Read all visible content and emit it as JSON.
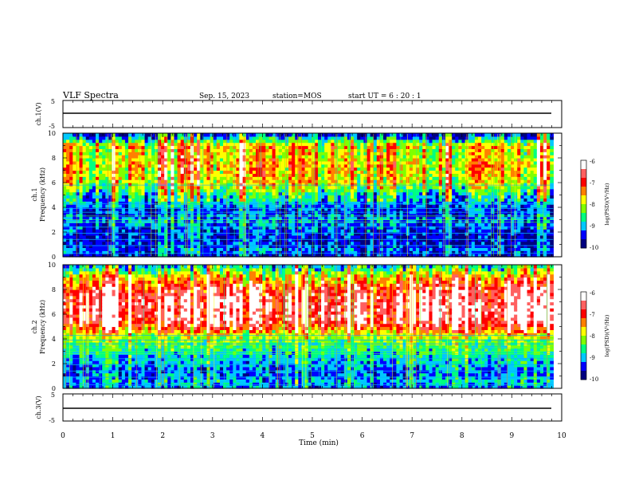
{
  "header": {
    "title": "VLF Spectra",
    "date": "Sep. 15, 2023",
    "station": "station=MOS",
    "start": "start UT = 6 : 20 : 1"
  },
  "panels": {
    "top_trace": {
      "ylabel": "ch.1(V)",
      "y_ticks": [
        "5",
        "-5"
      ]
    },
    "spec1": {
      "ylabel_line1": "ch.1",
      "ylabel_line2": "Frequency (kHz)",
      "y_ticks": [
        "0",
        "2",
        "4",
        "6",
        "8",
        "10"
      ]
    },
    "spec2": {
      "ylabel_line1": "ch.2",
      "ylabel_line2": "Frequency (kHz)",
      "y_ticks": [
        "0",
        "2",
        "4",
        "6",
        "8",
        "10"
      ]
    },
    "bottom_trace": {
      "ylabel": "ch.3(V)",
      "y_ticks": [
        "5",
        "-5"
      ]
    }
  },
  "colorbar": {
    "label": "log(PSD)(V²/Hz)",
    "ticks": [
      "-6",
      "-7",
      "-8",
      "-9",
      "-10"
    ],
    "colors": [
      "#000080",
      "#0000ff",
      "#00c8ff",
      "#00ff80",
      "#80ff00",
      "#ffff00",
      "#ff8000",
      "#ff0000",
      "#ff6060",
      "#ffffff"
    ]
  },
  "x_axis": {
    "label": "Time (min)",
    "ticks": [
      "0",
      "1",
      "2",
      "3",
      "4",
      "5",
      "6",
      "7",
      "8",
      "9",
      "10"
    ]
  },
  "chart_data": {
    "type": "heatmap",
    "title": "VLF Spectra",
    "xlabel": "Time (min)",
    "ylabel": "Frequency (kHz)",
    "xlim": [
      0,
      10
    ],
    "data_end_min": 9.83,
    "ylim": [
      0,
      10
    ],
    "clim": [
      -10,
      -6
    ],
    "colorbar_label": "log(PSD)(V²/Hz)",
    "traces": [
      {
        "name": "ch.1(V)",
        "ylim": [
          -5,
          5
        ],
        "level": 0
      },
      {
        "name": "ch.3(V)",
        "ylim": [
          -5,
          5
        ],
        "level": 0
      }
    ],
    "spectrograms": [
      {
        "name": "ch.1",
        "profile": [
          [
            0,
            -9.6
          ],
          [
            0.5,
            -9.2
          ],
          [
            1.0,
            -9.5
          ],
          [
            1.5,
            -9.6
          ],
          [
            2.0,
            -9.4
          ],
          [
            2.5,
            -9.3
          ],
          [
            3.0,
            -9.1
          ],
          [
            3.5,
            -9.4
          ],
          [
            4.0,
            -9.3
          ],
          [
            4.5,
            -8.9
          ],
          [
            5.0,
            -8.8
          ],
          [
            5.5,
            -8.3
          ],
          [
            6.0,
            -7.9
          ],
          [
            6.5,
            -7.8
          ],
          [
            7.0,
            -7.7
          ],
          [
            7.5,
            -7.6
          ],
          [
            8.0,
            -7.8
          ],
          [
            8.5,
            -7.9
          ],
          [
            9.0,
            -7.6
          ],
          [
            9.5,
            -8.8
          ],
          [
            10.0,
            -9.6
          ]
        ],
        "lines_khz": [
          0.3,
          0.9,
          1.4,
          1.9,
          2.4,
          2.8,
          3.0,
          3.3,
          3.6,
          3.9,
          4.3,
          5.8
        ]
      },
      {
        "name": "ch.2",
        "profile": [
          [
            0,
            -9.3
          ],
          [
            0.5,
            -8.9
          ],
          [
            1.0,
            -9.2
          ],
          [
            1.5,
            -9.3
          ],
          [
            2.0,
            -9.0
          ],
          [
            2.5,
            -8.9
          ],
          [
            3.0,
            -8.7
          ],
          [
            3.5,
            -8.5
          ],
          [
            4.0,
            -8.2
          ],
          [
            4.5,
            -7.7
          ],
          [
            5.0,
            -7.0
          ],
          [
            5.5,
            -6.6
          ],
          [
            6.0,
            -6.5
          ],
          [
            6.5,
            -6.5
          ],
          [
            7.0,
            -6.5
          ],
          [
            7.5,
            -6.6
          ],
          [
            8.0,
            -6.8
          ],
          [
            8.5,
            -7.2
          ],
          [
            9.0,
            -7.6
          ],
          [
            9.5,
            -8.3
          ],
          [
            10.0,
            -9.0
          ]
        ],
        "lines_khz": [
          0.3,
          0.9,
          1.4,
          1.9,
          2.4,
          2.8,
          3.0,
          3.3,
          3.6,
          3.9,
          4.3
        ]
      }
    ]
  }
}
